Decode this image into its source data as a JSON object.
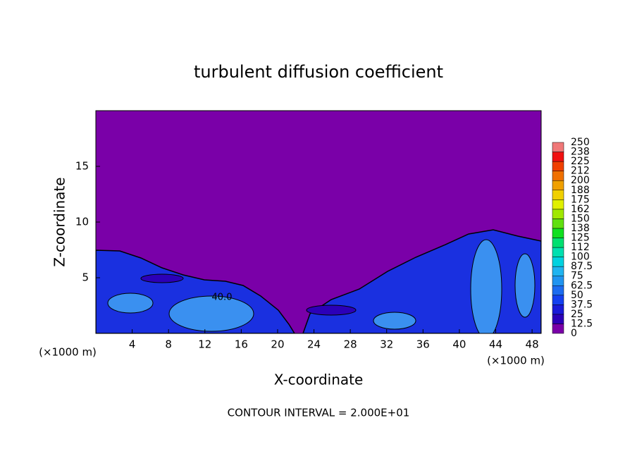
{
  "chart_data": {
    "type": "contour",
    "title": "turbulent diffusion coefficient",
    "xlabel": "X-coordinate",
    "ylabel": "Z-coordinate",
    "x_unit": "(×1000 m)",
    "footer": "CONTOUR INTERVAL = 2.000E+01",
    "contour_label": "40.0",
    "xlim": [
      0,
      49
    ],
    "ylim": [
      0,
      20
    ],
    "xticks": [
      4,
      8,
      12,
      16,
      20,
      24,
      28,
      32,
      36,
      40,
      44,
      48
    ],
    "yticks": [
      5,
      10,
      15
    ],
    "colorbar": {
      "ticks": [
        0,
        12.5,
        25,
        37.5,
        50,
        62.5,
        75,
        87.5,
        100,
        {
          "value": 112.5,
          "label": "112"
        },
        125,
        {
          "value": 137.5,
          "label": "138"
        },
        150,
        {
          "value": 162.5,
          "label": "162"
        },
        175,
        {
          "value": 187.5,
          "label": "188"
        },
        200,
        {
          "value": 212.5,
          "label": "212"
        },
        225,
        {
          "value": 237.5,
          "label": "238"
        },
        250
      ],
      "colors": [
        "#7a00a8",
        "#2c00b8",
        "#1a1ad8",
        "#1440f0",
        "#1c6cf0",
        "#2094f0",
        "#20b4f0",
        "#00d2e0",
        "#00e0b0",
        "#00e070",
        "#10e020",
        "#60e010",
        "#a0e800",
        "#e0f000",
        "#f0d000",
        "#f0a000",
        "#f07000",
        "#f04000",
        "#f01010",
        "#f07878"
      ]
    }
  }
}
